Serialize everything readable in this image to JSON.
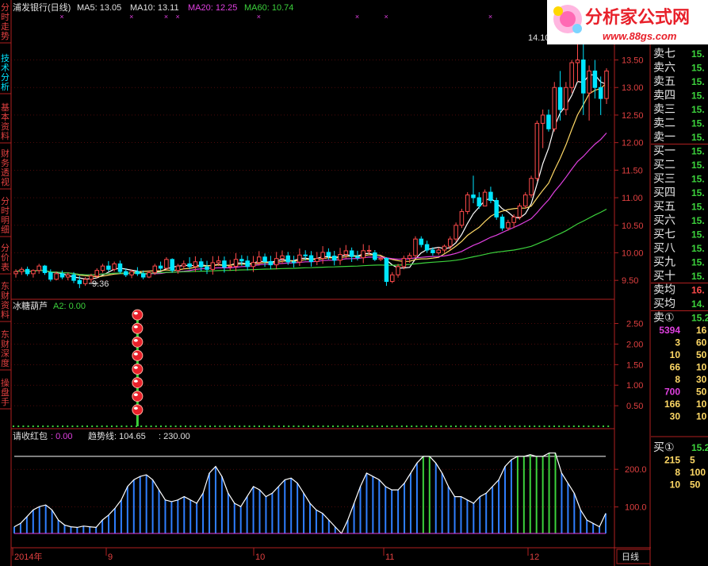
{
  "colors": {
    "up": "#ff4b4b",
    "down": "#00e5ff",
    "ma5": "#ffffff",
    "ma10": "#ffd966",
    "ma20": "#e040e0",
    "ma60": "#3cd23c",
    "axis": "#b02020",
    "grid": "#7a1010",
    "text": "#e0e0e0",
    "trend": "#2f7fff"
  },
  "side_tabs": [
    "分时走势",
    "技术分析",
    "基本资料",
    "财务透视",
    "分时明细",
    "分价表",
    "东财资料",
    "东财深度",
    "操盘手"
  ],
  "logo": {
    "text": "分析家公式网",
    "url": "www.88gs.com"
  },
  "main": {
    "title": "浦发银行(日线)",
    "ma5_label": "MA5: 13.05",
    "ma10_label": "MA10: 13.11",
    "ma20_label": "MA20: 12.25",
    "ma60_label": "MA60: 10.74",
    "high_label": "14.10",
    "low_label": "9.36"
  },
  "ind1": {
    "title": "冰糖葫芦",
    "a2_label": "A2: 0.00"
  },
  "ind2": {
    "title": "请收红包",
    "val_label": ": 0.00",
    "trend_label": "趋势线: 104.65",
    "line_label": ": 230.00"
  },
  "date_labels": [
    "2014年",
    "9",
    "10",
    "11",
    "12"
  ],
  "period_label": "日线",
  "order_book": {
    "sell_labels": [
      "卖七",
      "卖六",
      "卖五",
      "卖四",
      "卖三",
      "卖二",
      "卖一"
    ],
    "sell_prices": [
      "15.",
      "15.",
      "15.",
      "15.",
      "15.",
      "15.",
      "15."
    ],
    "buy_labels": [
      "买一",
      "买二",
      "买三",
      "买四",
      "买五",
      "买六",
      "买七",
      "买八",
      "买九",
      "买十"
    ],
    "buy_prices": [
      "15.",
      "15.",
      "15.",
      "15.",
      "15.",
      "15.",
      "15.",
      "15.",
      "15.",
      "15."
    ],
    "avg_sell_label": "卖均",
    "avg_sell_price": "16.",
    "avg_buy_label": "买均",
    "avg_buy_price": "14.",
    "sell1_queue_label": "卖①",
    "sell1_queue_price": "15.2",
    "sell1_queue": [
      [
        "5394",
        "16"
      ],
      [
        "3",
        "60"
      ],
      [
        "10",
        "50"
      ],
      [
        "66",
        "10"
      ],
      [
        "8",
        "30"
      ],
      [
        "700",
        "50"
      ],
      [
        "166",
        "10"
      ],
      [
        "30",
        "10"
      ]
    ],
    "buy1_queue_label": "买①",
    "buy1_queue_price": "15.2",
    "buy1_queue": [
      [
        "215",
        "5"
      ],
      [
        "8",
        "100"
      ],
      [
        "10",
        "50"
      ]
    ]
  },
  "chart_data": [
    {
      "type": "candlestick",
      "title": "浦发银行(日线)",
      "ylim": [
        9.2,
        14.3
      ],
      "yticks": [
        9.5,
        10.0,
        10.5,
        11.0,
        11.5,
        12.0,
        12.5,
        13.0,
        13.5
      ],
      "ytick_labels": [
        "9.50",
        "10.00",
        "10.50",
        "11.00",
        "11.50",
        "12.00",
        "12.50",
        "13.00",
        "13.50"
      ],
      "ohlc_start": [
        [
          9.62,
          9.7,
          9.55,
          9.66
        ],
        [
          9.66,
          9.74,
          9.6,
          9.7
        ],
        [
          9.7,
          9.75,
          9.58,
          9.62
        ],
        [
          9.62,
          9.7,
          9.55,
          9.68
        ],
        [
          9.68,
          9.8,
          9.62,
          9.76
        ],
        [
          9.76,
          9.78,
          9.6,
          9.64
        ],
        [
          9.64,
          9.7,
          9.48,
          9.52
        ],
        [
          9.52,
          9.66,
          9.5,
          9.62
        ],
        [
          9.62,
          9.68,
          9.52,
          9.56
        ],
        [
          9.56,
          9.64,
          9.5,
          9.6
        ],
        [
          9.6,
          9.65,
          9.45,
          9.5
        ],
        [
          9.5,
          9.58,
          9.36,
          9.44
        ],
        [
          9.44,
          9.56,
          9.4,
          9.52
        ],
        [
          9.52,
          9.62,
          9.46,
          9.58
        ],
        [
          9.58,
          9.72,
          9.54,
          9.68
        ],
        [
          9.68,
          9.8,
          9.64,
          9.76
        ],
        [
          9.76,
          9.85,
          9.66,
          9.7
        ],
        [
          9.7,
          9.84,
          9.66,
          9.8
        ],
        [
          9.8,
          9.86,
          9.62,
          9.66
        ],
        [
          9.66,
          9.72,
          9.56,
          9.6
        ],
        [
          9.6,
          9.7,
          9.54,
          9.66
        ],
        [
          9.66,
          9.74,
          9.58,
          9.62
        ],
        [
          9.62,
          9.68,
          9.52,
          9.56
        ],
        [
          9.56,
          9.68,
          9.54,
          9.64
        ],
        [
          9.64,
          9.8,
          9.6,
          9.76
        ],
        [
          9.76,
          9.84,
          9.68,
          9.72
        ],
        [
          9.72,
          9.92,
          9.7,
          9.88
        ],
        [
          9.88,
          9.9,
          9.64,
          9.68
        ],
        [
          9.68,
          9.8,
          9.62,
          9.76
        ],
        [
          9.76,
          9.86,
          9.7,
          9.8
        ]
      ],
      "ohlc_end": [
        [
          10.0,
          10.05,
          9.85,
          9.88
        ],
        [
          9.88,
          9.95,
          9.85,
          9.9
        ],
        [
          9.9,
          9.92,
          9.4,
          9.48
        ],
        [
          9.48,
          9.65,
          9.45,
          9.6
        ],
        [
          9.6,
          9.8,
          9.55,
          9.75
        ],
        [
          9.75,
          9.95,
          9.7,
          9.9
        ],
        [
          9.9,
          10.0,
          9.82,
          9.95
        ],
        [
          9.95,
          10.3,
          9.9,
          10.25
        ],
        [
          10.25,
          10.3,
          10.1,
          10.15
        ],
        [
          10.15,
          10.22,
          10.0,
          10.05
        ],
        [
          10.05,
          10.1,
          9.95,
          10.0
        ],
        [
          10.0,
          10.1,
          9.96,
          10.05
        ],
        [
          10.05,
          10.15,
          10.0,
          10.12
        ],
        [
          10.12,
          10.3,
          10.05,
          10.25
        ],
        [
          10.25,
          10.55,
          10.2,
          10.5
        ],
        [
          10.5,
          10.8,
          10.45,
          10.75
        ],
        [
          10.75,
          11.1,
          10.7,
          11.05
        ],
        [
          11.05,
          11.4,
          10.9,
          11.0
        ],
        [
          11.0,
          11.1,
          10.8,
          10.85
        ],
        [
          10.85,
          11.15,
          10.85,
          11.1
        ],
        [
          11.1,
          11.2,
          10.9,
          10.95
        ],
        [
          10.95,
          11.0,
          10.6,
          10.65
        ],
        [
          10.65,
          10.7,
          10.4,
          10.45
        ],
        [
          10.45,
          10.6,
          10.4,
          10.55
        ],
        [
          10.55,
          10.7,
          10.45,
          10.65
        ],
        [
          10.65,
          10.9,
          10.6,
          10.85
        ],
        [
          10.85,
          11.1,
          10.8,
          11.05
        ],
        [
          11.05,
          11.4,
          11.0,
          11.35
        ],
        [
          11.35,
          12.4,
          11.3,
          12.35
        ],
        [
          12.35,
          12.6,
          11.9,
          12.5
        ],
        [
          12.5,
          12.6,
          12.2,
          12.25
        ],
        [
          12.25,
          13.1,
          12.2,
          13.0
        ],
        [
          13.0,
          13.3,
          12.4,
          12.6
        ],
        [
          12.6,
          13.1,
          12.5,
          13.0
        ],
        [
          13.0,
          13.5,
          12.9,
          13.45
        ],
        [
          13.45,
          14.1,
          13.1,
          13.5
        ],
        [
          13.5,
          13.8,
          12.5,
          12.9
        ],
        [
          12.9,
          13.4,
          12.4,
          13.3
        ],
        [
          13.3,
          13.5,
          12.8,
          13.0
        ],
        [
          13.0,
          13.2,
          12.5,
          12.8
        ],
        [
          12.8,
          13.35,
          12.7,
          13.3
        ]
      ],
      "ma5": 13.05,
      "ma10": 13.11,
      "ma20": 12.25,
      "ma60": 10.74,
      "high": 14.1,
      "low": 9.36
    },
    {
      "type": "scatter",
      "title": "冰糖葫芦",
      "ylim": [
        0,
        2.8
      ],
      "yticks": [
        0.5,
        1.0,
        1.5,
        2.0,
        2.5
      ],
      "ytick_labels": [
        "0.50",
        "1.00",
        "1.50",
        "2.00",
        "2.50"
      ],
      "a2": 0.0,
      "signal_index": 21,
      "signal_count": 8
    },
    {
      "type": "bar",
      "title": "请收红包",
      "ylim": [
        0,
        270
      ],
      "yticks": [
        100,
        200
      ],
      "ytick_labels": [
        "100.0",
        "200.0"
      ],
      "line_value": 230.0,
      "trend_value": 104.65,
      "red_value": 0.0,
      "values": [
        20,
        30,
        50,
        70,
        80,
        85,
        70,
        40,
        25,
        20,
        18,
        22,
        20,
        18,
        40,
        55,
        75,
        100,
        140,
        160,
        170,
        175,
        160,
        130,
        100,
        95,
        100,
        110,
        100,
        90,
        120,
        180,
        200,
        170,
        120,
        90,
        80,
        110,
        140,
        130,
        110,
        120,
        140,
        160,
        165,
        150,
        120,
        90,
        70,
        60,
        40,
        20,
        0,
        40,
        90,
        140,
        180,
        170,
        160,
        140,
        130,
        130,
        150,
        180,
        210,
        230,
        230,
        210,
        180,
        140,
        110,
        110,
        100,
        90,
        110,
        120,
        140,
        160,
        200,
        220,
        230,
        230,
        235,
        230,
        230,
        240,
        240,
        180,
        150,
        120,
        70,
        40,
        30,
        20,
        60
      ]
    }
  ]
}
